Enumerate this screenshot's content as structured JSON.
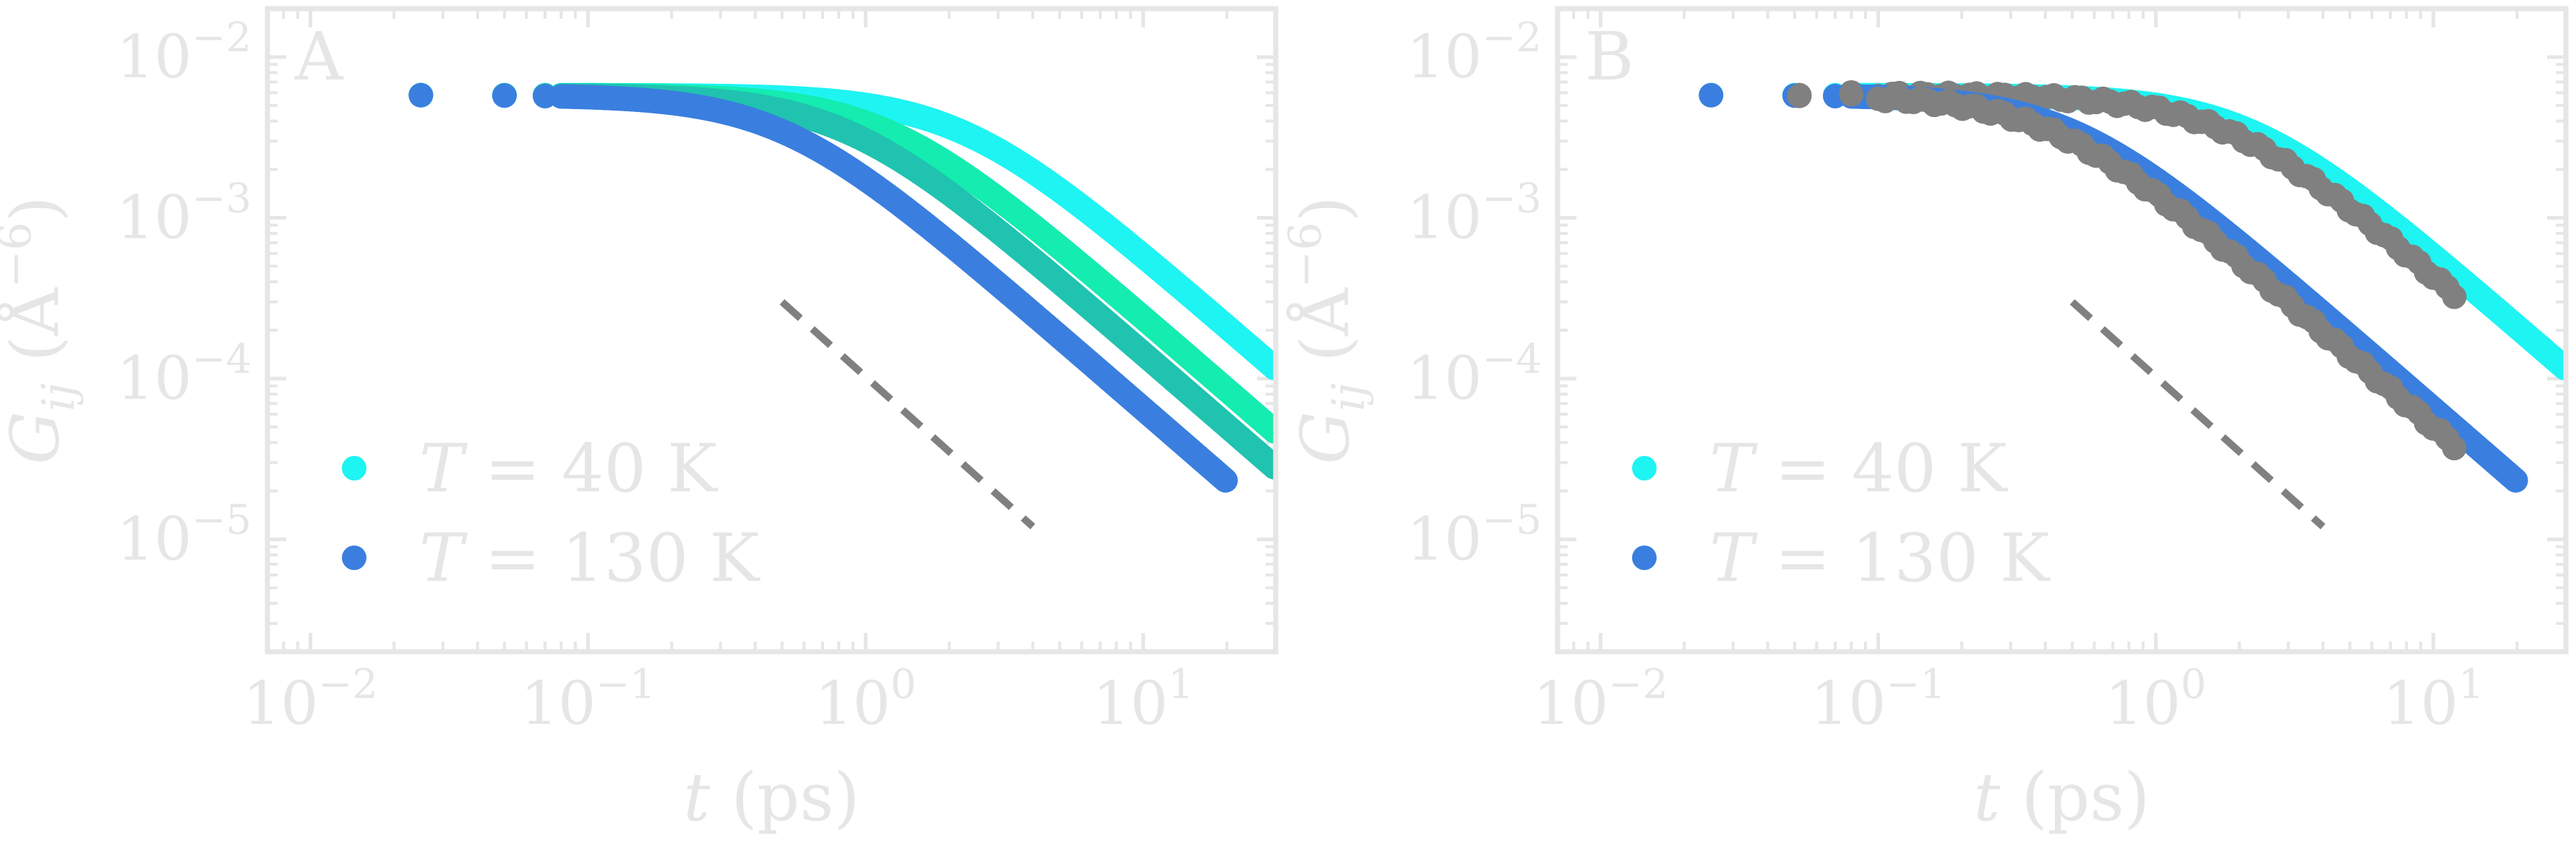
{
  "chart_data": [
    {
      "type": "scatter",
      "panel_label": "A",
      "xlabel": {
        "var": "t",
        "unit": " (ps)"
      },
      "ylabel": {
        "var": "G",
        "sub": "ij",
        "unit_open": " (Å",
        "unit_exp": "−6",
        "unit_close": ")"
      },
      "xscale": "log",
      "yscale": "log",
      "xlim": [
        0.007,
        30
      ],
      "ylim": [
        2e-06,
        0.02
      ],
      "xticks": [
        {
          "base": "10",
          "exp": "−2",
          "value": 0.01
        },
        {
          "base": "10",
          "exp": "−1",
          "value": 0.1
        },
        {
          "base": "10",
          "exp": "0",
          "value": 1
        },
        {
          "base": "10",
          "exp": "1",
          "value": 10
        }
      ],
      "yticks": [
        {
          "base": "10",
          "exp": "−2",
          "value": 0.01
        },
        {
          "base": "10",
          "exp": "−3",
          "value": 0.001
        },
        {
          "base": "10",
          "exp": "−4",
          "value": 0.0001
        },
        {
          "base": "10",
          "exp": "−5",
          "value": 1e-05
        }
      ],
      "legend": {
        "placement": "lower-left",
        "entries": [
          {
            "var": "T",
            "text": " = 40 K",
            "color": "#1ef4f2"
          },
          {
            "var": "T",
            "text": " = 130 K",
            "color": "#3a7fdf"
          }
        ]
      },
      "series": [
        {
          "color": "#1ef4f2",
          "tau": 2.2,
          "amp": 0.0058,
          "tmax": 30,
          "kind": "full"
        },
        {
          "color": "#14ecb0",
          "tau": 1.2,
          "amp": 0.0058,
          "tmax": 30,
          "kind": "full"
        },
        {
          "color": "#20c3b0",
          "tau": 0.85,
          "amp": 0.0058,
          "tmax": 30,
          "kind": "full"
        },
        {
          "color": "#3a7fdf",
          "tau": 0.5,
          "amp": 0.0058,
          "tmax": 20,
          "kind": "full"
        }
      ],
      "guide_line": {
        "x": [
          0.5,
          4
        ],
        "y": [
          0.0003,
          1.2e-05
        ],
        "color": "#808080"
      }
    },
    {
      "type": "scatter",
      "panel_label": "B",
      "xlabel": {
        "var": "t",
        "unit": " (ps)"
      },
      "ylabel": {
        "var": "G",
        "sub": "ij",
        "unit_open": " (Å",
        "unit_exp": "−6",
        "unit_close": ")"
      },
      "xscale": "log",
      "yscale": "log",
      "xlim": [
        0.007,
        30
      ],
      "ylim": [
        2e-06,
        0.02
      ],
      "xticks": [
        {
          "base": "10",
          "exp": "−2",
          "value": 0.01
        },
        {
          "base": "10",
          "exp": "−1",
          "value": 0.1
        },
        {
          "base": "10",
          "exp": "0",
          "value": 1
        },
        {
          "base": "10",
          "exp": "1",
          "value": 10
        }
      ],
      "yticks": [
        {
          "base": "10",
          "exp": "−2",
          "value": 0.01
        },
        {
          "base": "10",
          "exp": "−3",
          "value": 0.001
        },
        {
          "base": "10",
          "exp": "−4",
          "value": 0.0001
        },
        {
          "base": "10",
          "exp": "−5",
          "value": 1e-05
        }
      ],
      "legend": {
        "placement": "lower-left",
        "entries": [
          {
            "var": "T",
            "text": " = 40 K",
            "color": "#1ef4f2"
          },
          {
            "var": "T",
            "text": " = 130 K",
            "color": "#3a7fdf"
          }
        ]
      },
      "series": [
        {
          "color": "#1ef4f2",
          "tau": 2.2,
          "amp": 0.0058,
          "tmax": 30,
          "kind": "full"
        },
        {
          "color": "#808080",
          "tau": 1.8,
          "amp": 0.0058,
          "tmax": 12,
          "kind": "sparse"
        },
        {
          "color": "#3a7fdf",
          "tau": 0.5,
          "amp": 0.0058,
          "tmax": 20,
          "kind": "full"
        },
        {
          "color": "#808080",
          "tau": 0.42,
          "amp": 0.0058,
          "tmax": 12,
          "kind": "sparse"
        }
      ],
      "guide_line": {
        "x": [
          0.5,
          4
        ],
        "y": [
          0.0003,
          1.2e-05
        ],
        "color": "#808080"
      }
    }
  ]
}
